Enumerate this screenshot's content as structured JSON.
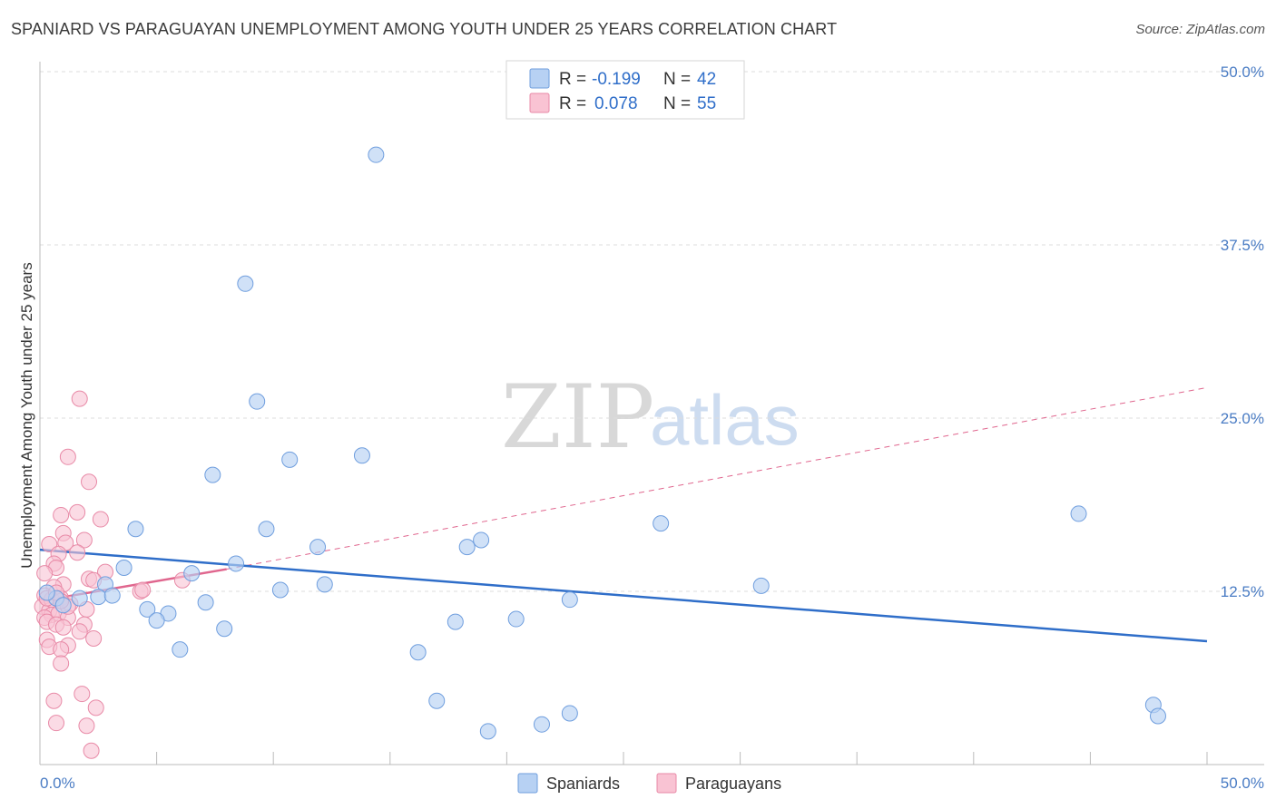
{
  "header": {
    "title": "SPANIARD VS PARAGUAYAN UNEMPLOYMENT AMONG YOUTH UNDER 25 YEARS CORRELATION CHART",
    "source": "Source: ZipAtlas.com"
  },
  "watermark": {
    "zip": "ZIP",
    "atlas": "atlas"
  },
  "legend": {
    "rows": [
      {
        "r_label": "R =",
        "r_value": "-0.199",
        "n_label": "N =",
        "n_value": "42",
        "color": "#a9c8f0"
      },
      {
        "r_label": "R =",
        "r_value": "0.078",
        "n_label": "N =",
        "n_value": "55",
        "color": "#f6b5c8"
      }
    ]
  },
  "colors": {
    "blue_fill": "#b7d1f3",
    "blue_stroke": "#6f9ede",
    "blue_line": "#2f6ec9",
    "pink_fill": "#f9c3d3",
    "pink_stroke": "#e88aa7",
    "pink_line": "#e0668e",
    "grid": "#dddddd",
    "tick_label": "#4a7cc4"
  },
  "chart_data": {
    "type": "scatter",
    "title": "SPANIARD VS PARAGUAYAN UNEMPLOYMENT AMONG YOUTH UNDER 25 YEARS CORRELATION CHART",
    "xlabel": "",
    "ylabel": "Unemployment Among Youth under 25 years",
    "xlim": [
      0,
      50
    ],
    "ylim": [
      0,
      50
    ],
    "x_tick_labels": [
      "0.0%",
      "50.0%"
    ],
    "y_ticks": [
      12.5,
      25.0,
      37.5,
      50.0
    ],
    "y_tick_labels": [
      "12.5%",
      "25.0%",
      "37.5%",
      "50.0%"
    ],
    "legend_labels": [
      "Spaniards",
      "Paraguayans"
    ],
    "series": [
      {
        "name": "Spaniards",
        "points": [
          [
            14.4,
            44.0
          ],
          [
            8.8,
            34.7
          ],
          [
            9.3,
            26.2
          ],
          [
            10.7,
            22.0
          ],
          [
            13.8,
            22.3
          ],
          [
            7.4,
            20.9
          ],
          [
            4.1,
            17.0
          ],
          [
            9.7,
            17.0
          ],
          [
            11.9,
            15.7
          ],
          [
            18.3,
            15.7
          ],
          [
            18.9,
            16.2
          ],
          [
            26.6,
            17.4
          ],
          [
            44.5,
            18.1
          ],
          [
            3.6,
            14.2
          ],
          [
            8.4,
            14.5
          ],
          [
            6.5,
            13.8
          ],
          [
            12.2,
            13.0
          ],
          [
            30.9,
            12.9
          ],
          [
            2.8,
            13.0
          ],
          [
            2.5,
            12.1
          ],
          [
            1.7,
            12.0
          ],
          [
            0.7,
            12.0
          ],
          [
            10.3,
            12.6
          ],
          [
            7.1,
            11.7
          ],
          [
            22.7,
            11.9
          ],
          [
            4.6,
            11.2
          ],
          [
            5.5,
            10.9
          ],
          [
            5.0,
            10.4
          ],
          [
            17.8,
            10.3
          ],
          [
            20.4,
            10.5
          ],
          [
            7.9,
            9.8
          ],
          [
            6.0,
            8.3
          ],
          [
            16.2,
            8.1
          ],
          [
            17.0,
            4.6
          ],
          [
            19.2,
            2.4
          ],
          [
            21.5,
            2.9
          ],
          [
            22.7,
            3.7
          ],
          [
            47.7,
            4.3
          ],
          [
            47.9,
            3.5
          ],
          [
            0.3,
            12.4
          ],
          [
            1.0,
            11.5
          ],
          [
            3.1,
            12.2
          ]
        ],
        "trend": {
          "x": [
            0,
            50
          ],
          "y": [
            15.5,
            8.9
          ]
        }
      },
      {
        "name": "Paraguayans",
        "points": [
          [
            1.7,
            26.4
          ],
          [
            1.2,
            22.2
          ],
          [
            2.1,
            20.4
          ],
          [
            0.9,
            18.0
          ],
          [
            1.6,
            18.2
          ],
          [
            2.6,
            17.7
          ],
          [
            1.0,
            16.7
          ],
          [
            1.9,
            16.2
          ],
          [
            1.1,
            16.0
          ],
          [
            0.4,
            15.9
          ],
          [
            0.8,
            15.2
          ],
          [
            1.6,
            15.3
          ],
          [
            0.6,
            14.5
          ],
          [
            0.7,
            14.2
          ],
          [
            2.8,
            13.9
          ],
          [
            2.1,
            13.4
          ],
          [
            2.3,
            13.3
          ],
          [
            6.1,
            13.3
          ],
          [
            0.2,
            13.8
          ],
          [
            1.0,
            13.0
          ],
          [
            4.3,
            12.5
          ],
          [
            0.6,
            12.8
          ],
          [
            0.2,
            12.2
          ],
          [
            0.9,
            12.0
          ],
          [
            1.3,
            11.6
          ],
          [
            0.1,
            11.4
          ],
          [
            0.4,
            11.1
          ],
          [
            0.5,
            10.8
          ],
          [
            0.2,
            10.6
          ],
          [
            0.8,
            10.9
          ],
          [
            1.2,
            10.6
          ],
          [
            2.0,
            11.2
          ],
          [
            0.3,
            10.3
          ],
          [
            0.7,
            10.1
          ],
          [
            1.0,
            9.9
          ],
          [
            1.9,
            10.1
          ],
          [
            1.7,
            9.6
          ],
          [
            2.3,
            9.1
          ],
          [
            0.3,
            9.0
          ],
          [
            0.4,
            8.5
          ],
          [
            1.2,
            8.6
          ],
          [
            0.9,
            8.3
          ],
          [
            0.9,
            7.3
          ],
          [
            1.8,
            5.1
          ],
          [
            0.6,
            4.6
          ],
          [
            2.4,
            4.1
          ],
          [
            0.7,
            3.0
          ],
          [
            2.0,
            2.8
          ],
          [
            2.2,
            1.0
          ],
          [
            1.2,
            11.4
          ],
          [
            0.5,
            11.9
          ],
          [
            0.3,
            12.0
          ],
          [
            0.9,
            11.8
          ],
          [
            0.7,
            12.4
          ],
          [
            4.4,
            12.6
          ]
        ],
        "trend_solid": {
          "x": [
            0,
            8
          ],
          "y": [
            11.8,
            14.1
          ]
        },
        "trend_dashed": {
          "x": [
            8,
            50
          ],
          "y": [
            14.1,
            27.2
          ]
        }
      }
    ]
  }
}
